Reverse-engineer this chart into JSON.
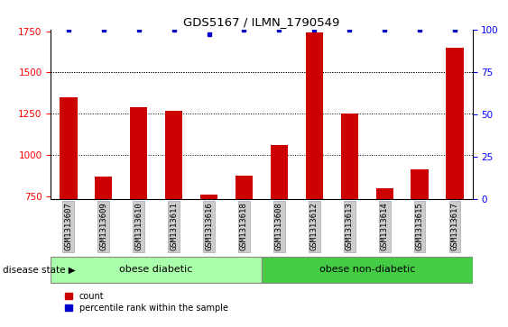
{
  "title": "GDS5167 / ILMN_1790549",
  "samples": [
    "GSM1313607",
    "GSM1313609",
    "GSM1313610",
    "GSM1313611",
    "GSM1313616",
    "GSM1313618",
    "GSM1313608",
    "GSM1313612",
    "GSM1313613",
    "GSM1313614",
    "GSM1313615",
    "GSM1313617"
  ],
  "counts": [
    1350,
    870,
    1290,
    1265,
    760,
    875,
    1060,
    1740,
    1250,
    800,
    910,
    1650
  ],
  "percentiles": [
    100,
    100,
    100,
    100,
    97,
    100,
    100,
    100,
    100,
    100,
    100,
    100
  ],
  "ylim_left": [
    730,
    1760
  ],
  "ylim_right": [
    0,
    100
  ],
  "yticks_left": [
    750,
    1000,
    1250,
    1500,
    1750
  ],
  "yticks_right": [
    0,
    25,
    50,
    75,
    100
  ],
  "grid_values": [
    1000,
    1250,
    1500,
    1500
  ],
  "bar_color": "#cc0000",
  "dot_color": "#0000cc",
  "group1_label": "obese diabetic",
  "group1_count": 6,
  "group2_label": "obese non-diabetic",
  "group2_count": 6,
  "group1_color": "#aaffaa",
  "group2_color": "#44cc44",
  "disease_state_label": "disease state",
  "legend_count_label": "count",
  "legend_pct_label": "percentile rank within the sample",
  "bg_color": "#ffffff",
  "tick_bg_color": "#cccccc",
  "figsize": [
    5.63,
    3.63
  ],
  "dpi": 100
}
